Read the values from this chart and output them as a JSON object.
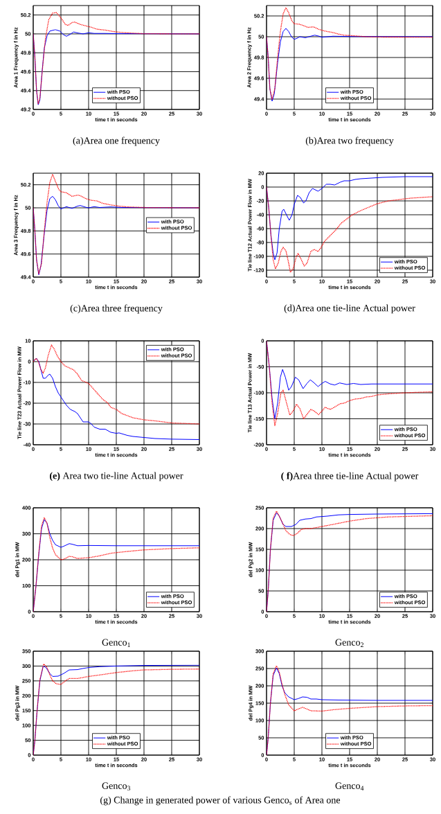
{
  "chart_data": [
    {
      "type": "line",
      "xlabel": "time t in seconds",
      "ylabel": "Area 1 Frequency f in Hz",
      "annotations": [
        "(a)Area one frequency"
      ],
      "xlim": [
        0,
        30
      ],
      "xticks": [
        0,
        5,
        10,
        15,
        20,
        25,
        30
      ],
      "ylim": [
        49.2,
        50.3
      ],
      "yticks": [
        49.2,
        49.4,
        49.6,
        49.8,
        50,
        50.2
      ],
      "grid": true,
      "legend": "bottom",
      "series": [
        {
          "name": "with PSO",
          "color": "#0000ff",
          "line_style": "solid",
          "x": [
            0,
            0.3,
            0.6,
            0.9,
            1.2,
            1.6,
            2,
            2.5,
            3,
            4,
            4.8,
            5.5,
            6,
            6.5,
            7.3,
            8,
            9,
            10,
            11,
            13,
            15,
            20,
            30
          ],
          "values": [
            50.0,
            49.75,
            49.4,
            49.25,
            49.3,
            49.6,
            49.85,
            49.98,
            50.03,
            50.045,
            50.03,
            49.99,
            49.975,
            49.99,
            50.02,
            50.01,
            50.0,
            50.012,
            50.005,
            50.005,
            50.003,
            50.002,
            50.0
          ]
        },
        {
          "name": "without PSO",
          "color": "#ff0000",
          "line_style": "dotted",
          "x": [
            0,
            0.3,
            0.6,
            0.9,
            1.2,
            1.7,
            2.2,
            2.8,
            3.5,
            4.2,
            5,
            5.8,
            6.3,
            7,
            7.5,
            8.5,
            9.5,
            10.5,
            11.5,
            13,
            14.5,
            16,
            18,
            20,
            30
          ],
          "values": [
            50,
            49.75,
            49.4,
            49.26,
            49.32,
            49.65,
            49.95,
            50.15,
            50.22,
            50.225,
            50.17,
            50.1,
            50.09,
            50.12,
            50.125,
            50.1,
            50.085,
            50.07,
            50.05,
            50.04,
            50.025,
            50.015,
            50.008,
            50.002,
            50.0
          ]
        }
      ]
    },
    {
      "type": "line",
      "xlabel": "time t in seconds",
      "ylabel": "Area 2 Frequency f in Hz",
      "annotations": [
        "(b)Area two frequency"
      ],
      "xlim": [
        0,
        30
      ],
      "xticks": [
        0,
        5,
        10,
        15,
        20,
        25,
        30
      ],
      "ylim": [
        49.3,
        50.3
      ],
      "yticks": [
        49.4,
        49.6,
        49.8,
        50,
        50.2
      ],
      "grid": true,
      "legend": "bottom",
      "series": [
        {
          "name": "with PSO",
          "color": "#0000ff",
          "line_style": "solid",
          "x": [
            0,
            0.3,
            0.6,
            1,
            1.4,
            2,
            2.5,
            3,
            3.5,
            4,
            4.5,
            5,
            5.5,
            6,
            7,
            8,
            8.7,
            9.5,
            10,
            11,
            12,
            15,
            30
          ],
          "values": [
            50,
            49.8,
            49.5,
            49.38,
            49.45,
            49.75,
            49.95,
            50.05,
            50.08,
            50.05,
            50.0,
            49.975,
            49.985,
            50.0,
            49.99,
            50.005,
            50.015,
            50.005,
            49.995,
            50.0,
            50.005,
            50.002,
            50.0
          ]
        },
        {
          "name": "without PSO",
          "color": "#ff0000",
          "line_style": "dotted",
          "x": [
            0,
            0.3,
            0.6,
            1,
            1.5,
            2,
            2.5,
            3,
            3.5,
            4,
            4.6,
            5,
            6,
            6.5,
            7.5,
            8.5,
            9.5,
            10.5,
            12,
            13,
            14,
            16,
            18,
            20,
            30
          ],
          "values": [
            50,
            49.8,
            49.5,
            49.4,
            49.5,
            49.8,
            50.05,
            50.22,
            50.28,
            50.23,
            50.15,
            50.125,
            50.12,
            50.11,
            50.09,
            50.095,
            50.07,
            50.055,
            50.04,
            50.025,
            50.015,
            50.008,
            50.0,
            49.997,
            49.996
          ]
        }
      ]
    },
    {
      "type": "line",
      "xlabel": "time t in seconds",
      "ylabel": "Area 3 Frequency f in Hz",
      "annotations": [
        "(c)Area three frequency"
      ],
      "xlim": [
        0,
        30
      ],
      "xticks": [
        0,
        5,
        10,
        15,
        20,
        25,
        30
      ],
      "ylim": [
        49.4,
        50.3
      ],
      "yticks": [
        49.4,
        49.6,
        49.8,
        50,
        50.2
      ],
      "grid": true,
      "legend": "right",
      "series": [
        {
          "name": "with PSO",
          "color": "#0000ff",
          "line_style": "solid",
          "x": [
            0,
            0.3,
            0.6,
            1,
            1.4,
            2,
            2.5,
            3,
            3.5,
            4,
            4.5,
            5,
            5.5,
            6,
            7,
            8,
            8.5,
            9.5,
            10,
            11,
            12,
            14,
            16,
            30
          ],
          "values": [
            50,
            49.8,
            49.55,
            49.42,
            49.5,
            49.78,
            49.98,
            50.08,
            50.1,
            50.07,
            50.02,
            49.99,
            50.0,
            50.01,
            49.995,
            50.015,
            50.02,
            50.005,
            50.0,
            50.01,
            50.003,
            50.008,
            50.003,
            50.0
          ]
        },
        {
          "name": "without PSO",
          "color": "#ff0000",
          "line_style": "dotted",
          "x": [
            0,
            0.3,
            0.6,
            1,
            1.5,
            2,
            2.5,
            3,
            3.5,
            4,
            4.6,
            5,
            6,
            7,
            8,
            8.5,
            9.5,
            10.5,
            11.5,
            12.5,
            14,
            15.5,
            17,
            20,
            30
          ],
          "values": [
            50,
            49.8,
            49.55,
            49.43,
            49.52,
            49.8,
            50.05,
            50.22,
            50.29,
            50.23,
            50.16,
            50.14,
            50.13,
            50.1,
            50.11,
            50.105,
            50.08,
            50.065,
            50.06,
            50.04,
            50.025,
            50.015,
            50.008,
            50.003,
            50.0
          ]
        }
      ]
    },
    {
      "type": "line",
      "xlabel": "time t in seconds",
      "ylabel": "Tie line T12 Actual Power Flow in MW",
      "annotations": [
        "(d)Area one tie-line Actual power"
      ],
      "xlim": [
        0,
        30
      ],
      "xticks": [
        0,
        5,
        10,
        15,
        20,
        25,
        30
      ],
      "ylim": [
        -130,
        20
      ],
      "yticks": [
        -120,
        -100,
        -80,
        -60,
        -40,
        -20,
        0,
        20
      ],
      "grid": true,
      "legend": "bottom right",
      "series": [
        {
          "name": "with PSO",
          "color": "#0000ff",
          "line_style": "solid",
          "x": [
            0,
            0.4,
            0.8,
            1.2,
            1.5,
            1.9,
            2.3,
            2.8,
            3.1,
            3.6,
            4.1,
            4.6,
            5,
            5.6,
            6.1,
            6.7,
            7.1,
            7.7,
            8.3,
            9.3,
            10,
            10.8,
            11.5,
            12.3,
            13.3,
            14,
            15,
            16,
            17,
            19,
            21,
            25,
            30
          ],
          "values": [
            0,
            -30,
            -70,
            -95,
            -105,
            -95,
            -60,
            -35,
            -32,
            -40,
            -48,
            -40,
            -25,
            -12,
            -15,
            -23,
            -20,
            -8,
            -2,
            -6,
            -2,
            4,
            4,
            3,
            7,
            9,
            9,
            11,
            12,
            13,
            14,
            15,
            15
          ]
        },
        {
          "name": "without PSO",
          "color": "#ff0000",
          "line_style": "dotted",
          "x": [
            0,
            0.4,
            0.8,
            1.2,
            1.6,
            2.1,
            2.6,
            3,
            3.5,
            4,
            4.3,
            4.8,
            5.4,
            5.7,
            6.3,
            6.8,
            7.3,
            8,
            8.6,
            9.3,
            9.8,
            10.5,
            11.5,
            12.5,
            13.5,
            14.5,
            15.5,
            17,
            18.5,
            20,
            22,
            24,
            26,
            28,
            30
          ],
          "values": [
            0,
            -30,
            -70,
            -105,
            -118,
            -110,
            -93,
            -87,
            -92,
            -110,
            -123,
            -118,
            -100,
            -96,
            -105,
            -114,
            -110,
            -93,
            -90,
            -93,
            -88,
            -78,
            -70,
            -62,
            -52,
            -46,
            -40,
            -34,
            -29,
            -24,
            -20,
            -18,
            -16,
            -15,
            -14
          ]
        }
      ]
    },
    {
      "type": "line",
      "xlabel": "time t in seconds",
      "ylabel": "Tie line T23 Actual Power Flow in MW",
      "annotations": [
        "**(e)** Area two tie-line Actual power"
      ],
      "xlim": [
        0,
        30
      ],
      "xticks": [
        0,
        5,
        10,
        15,
        20,
        25,
        30
      ],
      "ylim": [
        -40,
        10
      ],
      "yticks": [
        -40,
        -30,
        -20,
        -10,
        0,
        10
      ],
      "grid": true,
      "legend": "top right",
      "series": [
        {
          "name": "with PSO",
          "color": "#0000ff",
          "line_style": "solid",
          "x": [
            0,
            0.3,
            0.6,
            1,
            1.4,
            1.8,
            2.2,
            2.7,
            3,
            3.5,
            4,
            4.5,
            5,
            5.5,
            6,
            6.7,
            7.5,
            8,
            8.5,
            9,
            10,
            10.5,
            11,
            12,
            13,
            14,
            15,
            15.5,
            17,
            18,
            20,
            22,
            25,
            30
          ],
          "values": [
            0,
            1,
            1.5,
            0,
            -4,
            -8,
            -8,
            -6.5,
            -6,
            -8,
            -12,
            -15,
            -17,
            -19,
            -21,
            -23,
            -24,
            -25,
            -27,
            -29,
            -29,
            -30,
            -31.5,
            -32.5,
            -32.5,
            -34,
            -34.5,
            -34.3,
            -35.5,
            -36,
            -36.5,
            -37,
            -37.3,
            -37.5
          ]
        },
        {
          "name": "without PSO",
          "color": "#ff0000",
          "line_style": "dotted",
          "x": [
            0,
            0.3,
            0.6,
            1,
            1.4,
            1.8,
            2.2,
            2.7,
            3.3,
            3.8,
            4.3,
            5,
            5.7,
            6.5,
            7.3,
            8,
            8.7,
            10,
            10.5,
            11.5,
            12.5,
            13.5,
            14,
            15,
            16,
            17,
            18,
            19,
            20,
            22,
            25,
            30
          ],
          "values": [
            0,
            1,
            1.5,
            -0.5,
            -4,
            -5.5,
            -3,
            3,
            8,
            6,
            3,
            0,
            -2,
            -3,
            -4,
            -6,
            -9,
            -10.5,
            -12,
            -15,
            -18,
            -20,
            -22,
            -23,
            -25,
            -26,
            -27,
            -27.5,
            -28,
            -28.5,
            -29.5,
            -30
          ]
        }
      ]
    },
    {
      "type": "line",
      "xlabel": "time t in seconds",
      "ylabel": "Tie line T13 Actual Power in MW",
      "annotations": [
        "**( f)**Area three tie-line Actual power"
      ],
      "xlim": [
        0,
        30
      ],
      "xticks": [
        0,
        5,
        10,
        15,
        20,
        25,
        30
      ],
      "ylim": [
        -200,
        0
      ],
      "yticks": [
        -200,
        -150,
        -100,
        -50,
        0
      ],
      "grid": true,
      "legend": "bottom right",
      "series": [
        {
          "name": "with PSO",
          "color": "#0000ff",
          "line_style": "solid",
          "x": [
            0,
            0.5,
            1,
            1.5,
            2,
            2.5,
            2.9,
            3.4,
            4,
            4.5,
            5.2,
            5.8,
            6.6,
            7.3,
            7.9,
            8.5,
            9.3,
            10,
            10.6,
            11.5,
            12.3,
            13.2,
            14.5,
            15.7,
            17,
            19,
            30
          ],
          "values": [
            0,
            -50,
            -110,
            -150,
            -120,
            -70,
            -55,
            -70,
            -95,
            -88,
            -70,
            -75,
            -92,
            -82,
            -75,
            -80,
            -88,
            -82,
            -78,
            -83,
            -85,
            -81,
            -84,
            -82,
            -84,
            -83,
            -83
          ]
        },
        {
          "name": "without PSO",
          "color": "#ff0000",
          "line_style": "dotted",
          "x": [
            0,
            0.5,
            1,
            1.5,
            2,
            2.6,
            3,
            3.5,
            4.2,
            4.8,
            5.4,
            6,
            6.7,
            7.4,
            8,
            8.6,
            9.4,
            10,
            10.6,
            11.5,
            12.2,
            13.3,
            14,
            15,
            16,
            17,
            18,
            19,
            20,
            22,
            25,
            30
          ],
          "values": [
            0,
            -50,
            -120,
            -163,
            -140,
            -100,
            -95,
            -115,
            -143,
            -135,
            -122,
            -130,
            -150,
            -140,
            -132,
            -135,
            -142,
            -135,
            -128,
            -132,
            -128,
            -121,
            -120,
            -115,
            -112,
            -111,
            -108,
            -107,
            -104,
            -102,
            -100,
            -98
          ]
        }
      ]
    },
    {
      "type": "line",
      "xlabel": "time t in seconds",
      "ylabel": "del Pg1 in MW",
      "annotations": [
        "Genco$_{1}$"
      ],
      "xlim": [
        0,
        30
      ],
      "xticks": [
        0,
        5,
        10,
        15,
        20,
        25,
        30
      ],
      "ylim": [
        0,
        400
      ],
      "yticks": [
        0,
        100,
        200,
        300,
        400
      ],
      "grid": true,
      "legend": "bottom right",
      "series": [
        {
          "name": "with PSO",
          "color": "#0000ff",
          "line_style": "solid",
          "x": [
            0,
            0.5,
            1,
            1.5,
            2,
            2.5,
            3,
            3.5,
            4,
            5,
            5.5,
            6.5,
            7,
            8,
            10,
            15,
            30
          ],
          "values": [
            0,
            100,
            220,
            320,
            355,
            340,
            300,
            275,
            258,
            248,
            252,
            262,
            260,
            254,
            255,
            254,
            254
          ]
        },
        {
          "name": "without PSO",
          "color": "#ff0000",
          "line_style": "dotted",
          "x": [
            0,
            0.5,
            1,
            1.5,
            2,
            2.5,
            3,
            3.5,
            4,
            5,
            5.5,
            6.5,
            7,
            8,
            10,
            12,
            14,
            17,
            20,
            25,
            30
          ],
          "values": [
            0,
            100,
            225,
            330,
            362,
            340,
            285,
            245,
            220,
            200,
            202,
            213,
            212,
            205,
            208,
            215,
            225,
            232,
            238,
            243,
            246
          ]
        }
      ]
    },
    {
      "type": "line",
      "xlabel": "time t in seconds",
      "ylabel": "del Pg2 in MW",
      "annotations": [
        "Genco$_{2}$"
      ],
      "xlim": [
        0,
        30
      ],
      "xticks": [
        0,
        5,
        10,
        15,
        20,
        25,
        30
      ],
      "ylim": [
        0,
        250
      ],
      "yticks": [
        0,
        50,
        100,
        150,
        200,
        250
      ],
      "grid": true,
      "legend": "bottom right",
      "series": [
        {
          "name": "with PSO",
          "color": "#0000ff",
          "line_style": "solid",
          "x": [
            0,
            0.3,
            0.7,
            1.2,
            1.8,
            2.3,
            3,
            3.5,
            4.5,
            5.3,
            6,
            7,
            8,
            9,
            11,
            13,
            15,
            20,
            30
          ],
          "values": [
            0,
            50,
            150,
            220,
            238,
            230,
            210,
            205,
            205,
            210,
            220,
            223,
            224,
            228,
            230,
            233,
            234,
            235,
            236
          ]
        },
        {
          "name": "without PSO",
          "color": "#ff0000",
          "line_style": "dotted",
          "x": [
            0,
            0.3,
            0.7,
            1.2,
            1.8,
            2.3,
            3,
            3.5,
            4.2,
            4.8,
            5.5,
            6.3,
            7,
            8,
            10,
            12,
            15,
            18,
            22,
            30
          ],
          "values": [
            0,
            50,
            150,
            225,
            242,
            230,
            210,
            195,
            186,
            183,
            188,
            198,
            200,
            200,
            205,
            210,
            218,
            224,
            228,
            231
          ]
        }
      ]
    },
    {
      "type": "line",
      "xlabel": "time t in seconds",
      "ylabel": "del Pg3 in MW",
      "annotations": [
        "Genco$_{3}$"
      ],
      "xlim": [
        0,
        30
      ],
      "xticks": [
        0,
        5,
        10,
        15,
        20,
        25,
        30
      ],
      "ylim": [
        0,
        350
      ],
      "yticks": [
        0,
        50,
        100,
        150,
        200,
        250,
        300,
        350
      ],
      "grid": true,
      "legend": "bottom",
      "series": [
        {
          "name": "with PSO",
          "color": "#0000ff",
          "line_style": "solid",
          "x": [
            0,
            0.3,
            0.7,
            1.2,
            1.8,
            2.3,
            3,
            3.5,
            4.5,
            5.5,
            6.5,
            8,
            9,
            10,
            12,
            15,
            20,
            30
          ],
          "values": [
            0,
            50,
            150,
            250,
            300,
            295,
            275,
            265,
            266,
            275,
            287,
            288,
            292,
            295,
            298,
            300,
            302,
            303
          ]
        },
        {
          "name": "without PSO",
          "color": "#ff0000",
          "line_style": "dotted",
          "x": [
            0,
            0.3,
            0.7,
            1.2,
            1.9,
            2.5,
            3,
            3.5,
            4.2,
            5,
            5.8,
            6.5,
            8,
            10,
            12,
            15,
            18,
            20,
            25,
            30
          ],
          "values": [
            0,
            50,
            150,
            255,
            307,
            295,
            270,
            250,
            240,
            238,
            250,
            258,
            258,
            265,
            270,
            278,
            284,
            287,
            289,
            290
          ]
        }
      ]
    },
    {
      "type": "line",
      "xlabel": "time t in seconds",
      "ylabel": "del Pg4 in MW",
      "annotations": [
        "Genco$_{4}$",
        "(g) Change in generated power of various Genco$_{s}$ of Area one"
      ],
      "xlim": [
        0,
        30
      ],
      "xticks": [
        0,
        5,
        10,
        15,
        20,
        25,
        30
      ],
      "ylim": [
        0,
        300
      ],
      "yticks": [
        0,
        50,
        100,
        150,
        200,
        250,
        300
      ],
      "grid": true,
      "legend": "bottom",
      "series": [
        {
          "name": "with PSO",
          "color": "#0000ff",
          "line_style": "solid",
          "x": [
            0,
            0.3,
            0.7,
            1.2,
            1.8,
            2.3,
            2.8,
            3.3,
            4,
            5,
            5.7,
            6.5,
            7.3,
            8,
            9,
            10,
            13,
            20,
            30
          ],
          "values": [
            0,
            50,
            150,
            230,
            252,
            235,
            200,
            180,
            168,
            160,
            163,
            168,
            167,
            162,
            162,
            160,
            159,
            158,
            158
          ]
        },
        {
          "name": "without PSO",
          "color": "#ff0000",
          "line_style": "dotted",
          "x": [
            0,
            0.3,
            0.7,
            1.2,
            1.8,
            2.3,
            2.8,
            3.3,
            4,
            5,
            5.7,
            6.5,
            7.3,
            8,
            10,
            12,
            15,
            20,
            25,
            30
          ],
          "values": [
            0,
            50,
            150,
            235,
            258,
            240,
            205,
            175,
            145,
            128,
            133,
            138,
            133,
            128,
            127,
            131,
            135,
            140,
            142,
            143
          ]
        }
      ]
    }
  ]
}
